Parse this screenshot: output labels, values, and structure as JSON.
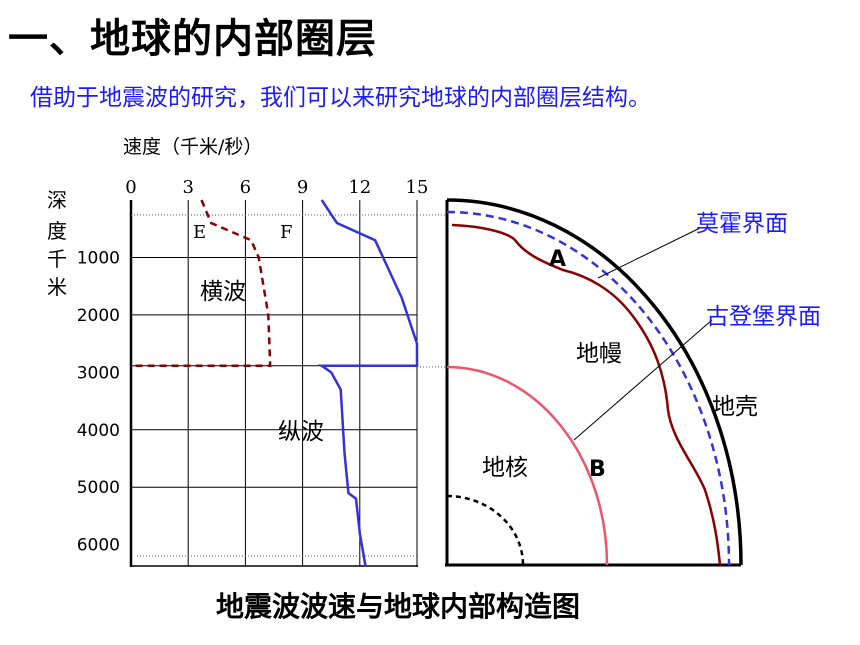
{
  "header": {
    "title": "一、地球的内部圈层",
    "subtitle": "借助于地震波的研究，我们可以来研究地球的内部圈层结构。"
  },
  "chart": {
    "speed_label": "速度（千米/秒）",
    "depth_label": [
      "深",
      "度",
      "千",
      "米"
    ],
    "x_ticks": [
      "0",
      "3",
      "6",
      "9",
      "12",
      "15"
    ],
    "y_ticks": [
      "1000",
      "2000",
      "3000",
      "4000",
      "5000",
      "6000"
    ],
    "labels": {
      "e": "E",
      "f": "F",
      "transverse": "横波",
      "longitudinal": "纵波"
    }
  },
  "chart_data": {
    "type": "line",
    "xlabel": "速度（千米/秒）",
    "ylabel": "深度千米",
    "xlim": [
      0,
      15
    ],
    "ylim": [
      0,
      6371
    ],
    "series": [
      {
        "name": "横波",
        "style": "dashed",
        "color": "#8b0000",
        "points": [
          [
            3.7,
            0
          ],
          [
            4.2,
            400
          ],
          [
            6.3,
            700
          ],
          [
            6.7,
            1000
          ],
          [
            7.2,
            2000
          ],
          [
            7.3,
            2885
          ],
          [
            0,
            2885
          ]
        ]
      },
      {
        "name": "纵波",
        "style": "solid",
        "color": "#3333dd",
        "points": [
          [
            10.0,
            0
          ],
          [
            10.8,
            400
          ],
          [
            12.8,
            700
          ],
          [
            14.2,
            1700
          ],
          [
            15.0,
            2500
          ],
          [
            15.0,
            2885
          ],
          [
            10.0,
            2885
          ],
          [
            10.5,
            3000
          ],
          [
            11.0,
            3300
          ],
          [
            11.2,
            4400
          ],
          [
            11.4,
            5100
          ],
          [
            11.8,
            5200
          ],
          [
            12.0,
            5800
          ],
          [
            12.3,
            6371
          ]
        ]
      }
    ]
  },
  "earth": {
    "moho_label": "莫霍界面",
    "gutenberg_label": "古登堡界面",
    "mantle": "地幔",
    "crust": "地壳",
    "core": "地核",
    "a": "A",
    "b": "B"
  },
  "caption": "地震波波速与地球内部构造图"
}
